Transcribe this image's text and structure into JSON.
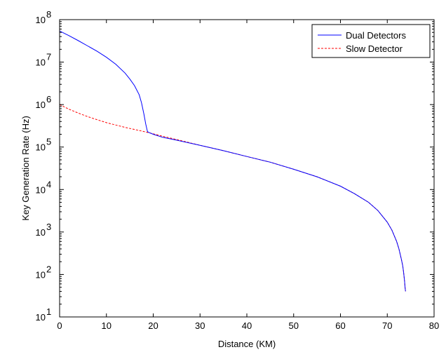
{
  "chart_data": {
    "type": "line",
    "title": "",
    "xlabel": "Distance (KM)",
    "ylabel": "Key Generation Rate (Hz)",
    "xlim": [
      0,
      80
    ],
    "ylim": [
      10,
      100000000
    ],
    "yscale": "log",
    "grid": false,
    "legend_position": "top-right",
    "x_ticks": [
      0,
      10,
      20,
      30,
      40,
      50,
      60,
      70,
      80
    ],
    "x_tick_labels": [
      "0",
      "10",
      "20",
      "30",
      "40",
      "50",
      "60",
      "70",
      "80"
    ],
    "y_ticks": [
      10,
      100,
      1000,
      10000,
      100000,
      1000000,
      10000000,
      100000000
    ],
    "y_tick_labels": [
      {
        "base": "10",
        "exp": "1"
      },
      {
        "base": "10",
        "exp": "2"
      },
      {
        "base": "10",
        "exp": "3"
      },
      {
        "base": "10",
        "exp": "4"
      },
      {
        "base": "10",
        "exp": "5"
      },
      {
        "base": "10",
        "exp": "6"
      },
      {
        "base": "10",
        "exp": "7"
      },
      {
        "base": "10",
        "exp": "8"
      }
    ],
    "series": [
      {
        "name": "Dual Detectors",
        "color": "#0000ff",
        "dash": "solid",
        "x": [
          0,
          2,
          4,
          6,
          8,
          10,
          12,
          14,
          15,
          16,
          17,
          17.5,
          18,
          18.4,
          18.7,
          18.8,
          18.9,
          20,
          22,
          25,
          30,
          35,
          40,
          45,
          50,
          55,
          60,
          63,
          66,
          68,
          70,
          71,
          72,
          72.5,
          73,
          73.3,
          73.5,
          73.7,
          73.8,
          73.9
        ],
        "y": [
          54000000,
          42000000,
          32000000,
          24000000,
          18000000,
          13000000,
          8900000,
          5500000,
          4000000,
          2800000,
          1700000,
          1100000,
          600000,
          350000,
          250000,
          230000,
          225000,
          200000,
          170000,
          145000,
          110000,
          82000,
          60000,
          44000,
          30000,
          20000,
          12000,
          8000,
          5000,
          3200,
          1700,
          1100,
          600,
          400,
          230,
          160,
          110,
          70,
          50,
          40
        ]
      },
      {
        "name": "Slow Detector",
        "color": "#ff0000",
        "dash": "dashed",
        "x": [
          0,
          2,
          4,
          6,
          8,
          10,
          12,
          14,
          16,
          18,
          20,
          22,
          25,
          30,
          35,
          40,
          45,
          50,
          55,
          60,
          63,
          66,
          68,
          70,
          71,
          72,
          72.5,
          73,
          73.3,
          73.5,
          73.7,
          73.8,
          73.9
        ],
        "y": [
          1000000,
          780000,
          630000,
          520000,
          440000,
          375000,
          330000,
          290000,
          260000,
          232000,
          205000,
          180000,
          150000,
          110000,
          82000,
          60000,
          44000,
          30000,
          20000,
          12000,
          8000,
          5000,
          3200,
          1700,
          1100,
          600,
          400,
          230,
          160,
          110,
          70,
          50,
          40
        ]
      }
    ]
  }
}
